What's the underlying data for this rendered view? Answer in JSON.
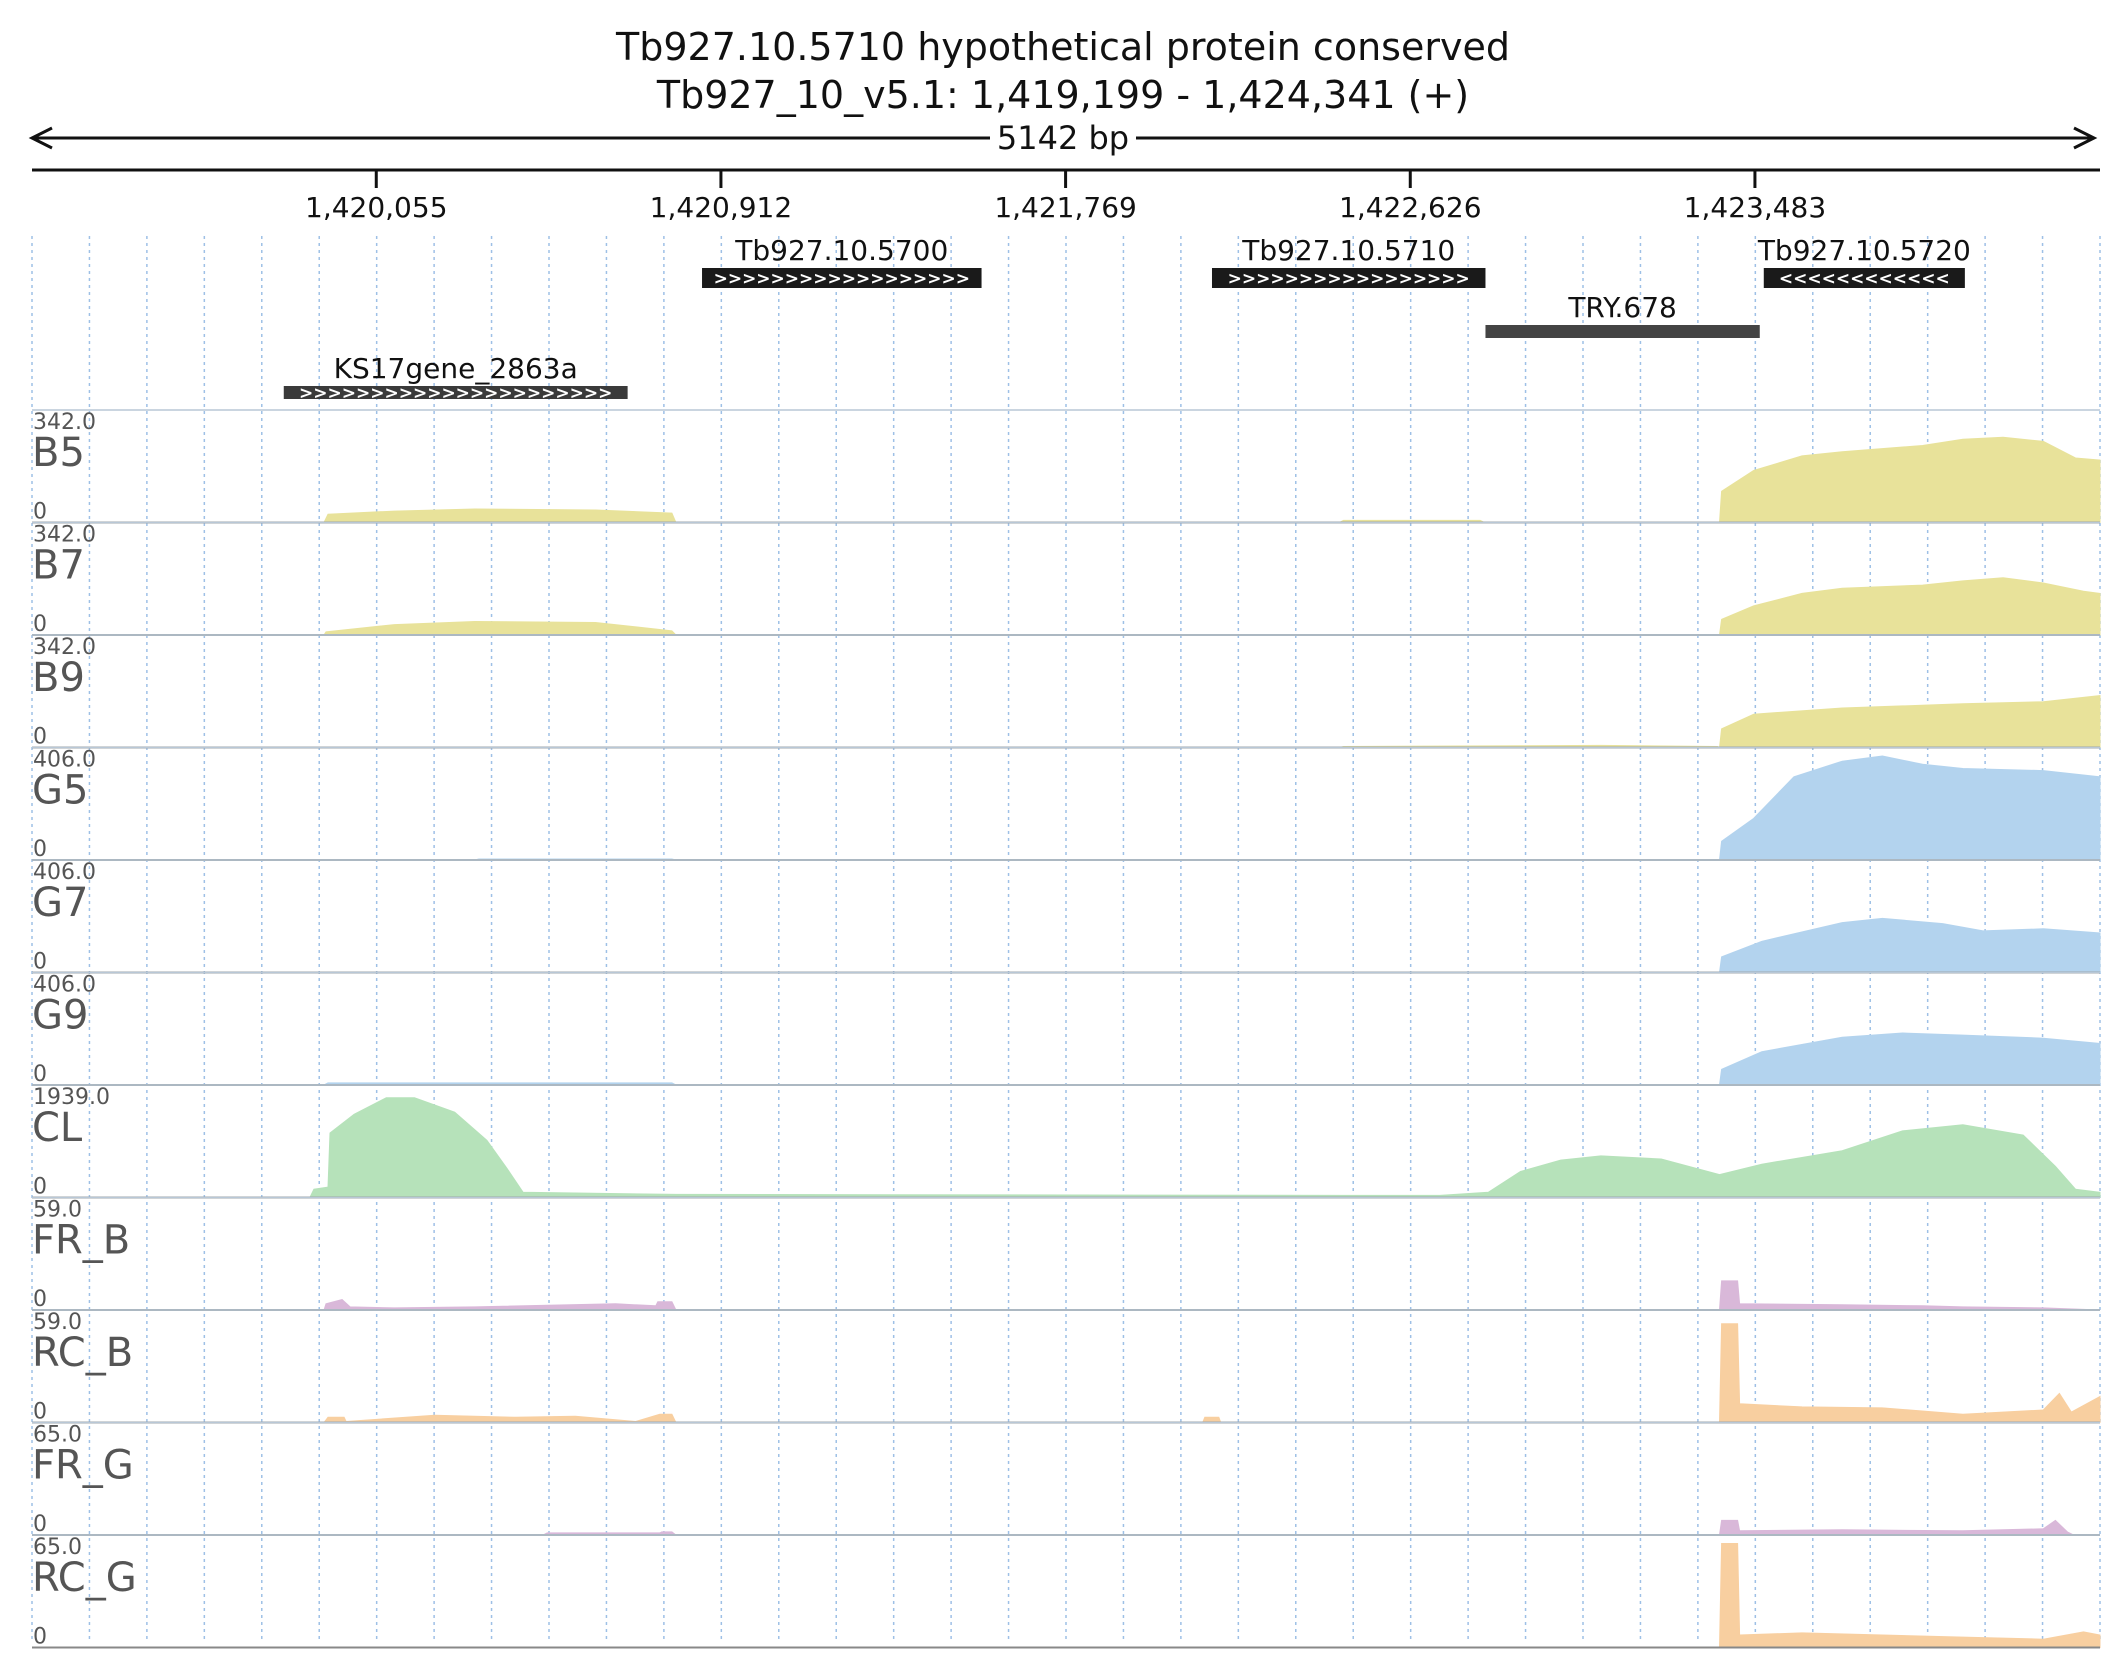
{
  "header": {
    "title": "Tb927.10.5710  hypothetical protein  conserved",
    "locus": "Tb927_10_v5.1: 1,419,199 - 1,424,341 (+)",
    "span": "5142 bp"
  },
  "chart_data": {
    "type": "area",
    "region": {
      "chrom": "Tb927_10_v5.1",
      "start": 1419199,
      "end": 1424341,
      "strand": "+"
    },
    "xticks": [
      {
        "pos": 1420055,
        "label": "1,420,055"
      },
      {
        "pos": 1420912,
        "label": "1,420,912"
      },
      {
        "pos": 1421769,
        "label": "1,421,769"
      },
      {
        "pos": 1422626,
        "label": "1,422,626"
      },
      {
        "pos": 1423483,
        "label": "1,423,483"
      }
    ],
    "features": [
      {
        "name": "Tb927.10.5700",
        "start": 1420865,
        "end": 1421560,
        "strand": "+",
        "row": 0,
        "color": "#1a1a1a"
      },
      {
        "name": "Tb927.10.5710",
        "start": 1422133,
        "end": 1422813,
        "strand": "+",
        "row": 0,
        "color": "#1a1a1a"
      },
      {
        "name": "Tb927.10.5720",
        "start": 1423505,
        "end": 1424005,
        "strand": "-",
        "row": 0,
        "color": "#1a1a1a"
      },
      {
        "name": "TRY.678",
        "start": 1422813,
        "end": 1423495,
        "strand": "",
        "row": 1,
        "color": "#444444"
      },
      {
        "name": "KS17gene_2863a",
        "start": 1419825,
        "end": 1420680,
        "strand": "+",
        "row": 2,
        "color": "#3a3a3a"
      }
    ],
    "tracks": [
      {
        "name": "B5",
        "max": "342.0",
        "min": "0",
        "color": "#e8e29a",
        "profile": [
          [
            1419199,
            0
          ],
          [
            1419925,
            0
          ],
          [
            1419935,
            8
          ],
          [
            1420100,
            11
          ],
          [
            1420300,
            13
          ],
          [
            1420600,
            12
          ],
          [
            1420790,
            9
          ],
          [
            1420800,
            0
          ],
          [
            1422450,
            0
          ],
          [
            1422460,
            2
          ],
          [
            1422800,
            2
          ],
          [
            1422810,
            0
          ],
          [
            1423395,
            0
          ],
          [
            1423400,
            30
          ],
          [
            1423480,
            50
          ],
          [
            1423600,
            64
          ],
          [
            1423700,
            68
          ],
          [
            1423900,
            74
          ],
          [
            1424000,
            80
          ],
          [
            1424100,
            82
          ],
          [
            1424200,
            78
          ],
          [
            1424280,
            62
          ],
          [
            1424341,
            60
          ]
        ]
      },
      {
        "name": "B7",
        "max": "342.0",
        "min": "0",
        "color": "#e8e29a",
        "profile": [
          [
            1419199,
            0
          ],
          [
            1419925,
            0
          ],
          [
            1419930,
            3
          ],
          [
            1420100,
            10
          ],
          [
            1420300,
            13
          ],
          [
            1420600,
            12
          ],
          [
            1420790,
            4
          ],
          [
            1420800,
            0
          ],
          [
            1423395,
            0
          ],
          [
            1423400,
            15
          ],
          [
            1423480,
            28
          ],
          [
            1423600,
            40
          ],
          [
            1423700,
            45
          ],
          [
            1423900,
            48
          ],
          [
            1424000,
            52
          ],
          [
            1424100,
            55
          ],
          [
            1424200,
            50
          ],
          [
            1424300,
            42
          ],
          [
            1424341,
            40
          ]
        ]
      },
      {
        "name": "B9",
        "max": "342.0",
        "min": "0",
        "color": "#e8e29a",
        "profile": [
          [
            1419199,
            0
          ],
          [
            1422450,
            0
          ],
          [
            1422460,
            1
          ],
          [
            1423100,
            2
          ],
          [
            1423390,
            1
          ],
          [
            1423395,
            0
          ],
          [
            1423400,
            18
          ],
          [
            1423480,
            32
          ],
          [
            1423700,
            38
          ],
          [
            1424000,
            42
          ],
          [
            1424200,
            44
          ],
          [
            1424341,
            50
          ]
        ]
      },
      {
        "name": "G5",
        "max": "406.0",
        "min": "0",
        "color": "#b3d3ee",
        "profile": [
          [
            1419199,
            0
          ],
          [
            1420300,
            0
          ],
          [
            1420310,
            1
          ],
          [
            1420790,
            1
          ],
          [
            1420800,
            0
          ],
          [
            1423395,
            0
          ],
          [
            1423400,
            18
          ],
          [
            1423480,
            40
          ],
          [
            1423580,
            80
          ],
          [
            1423700,
            95
          ],
          [
            1423800,
            100
          ],
          [
            1423900,
            92
          ],
          [
            1424000,
            88
          ],
          [
            1424200,
            86
          ],
          [
            1424341,
            80
          ]
        ]
      },
      {
        "name": "G7",
        "max": "406.0",
        "min": "0",
        "color": "#b3d3ee",
        "profile": [
          [
            1419199,
            0
          ],
          [
            1423395,
            0
          ],
          [
            1423400,
            15
          ],
          [
            1423500,
            30
          ],
          [
            1423700,
            48
          ],
          [
            1423800,
            52
          ],
          [
            1423950,
            47
          ],
          [
            1424050,
            40
          ],
          [
            1424200,
            42
          ],
          [
            1424341,
            38
          ]
        ]
      },
      {
        "name": "G9",
        "max": "406.0",
        "min": "0",
        "color": "#b3d3ee",
        "profile": [
          [
            1419199,
            0
          ],
          [
            1419925,
            0
          ],
          [
            1419935,
            2
          ],
          [
            1420790,
            2
          ],
          [
            1420800,
            0
          ],
          [
            1423395,
            0
          ],
          [
            1423400,
            15
          ],
          [
            1423500,
            32
          ],
          [
            1423700,
            46
          ],
          [
            1423850,
            50
          ],
          [
            1424000,
            48
          ],
          [
            1424200,
            45
          ],
          [
            1424341,
            40
          ]
        ]
      },
      {
        "name": "CL",
        "max": "1939.0",
        "min": "0",
        "color": "#b6e2ba",
        "profile": [
          [
            1419199,
            0
          ],
          [
            1419890,
            0
          ],
          [
            1419900,
            8
          ],
          [
            1419935,
            10
          ],
          [
            1419940,
            62
          ],
          [
            1420000,
            80
          ],
          [
            1420080,
            96
          ],
          [
            1420150,
            96
          ],
          [
            1420250,
            82
          ],
          [
            1420330,
            55
          ],
          [
            1420380,
            28
          ],
          [
            1420420,
            5
          ],
          [
            1420800,
            3
          ],
          [
            1422460,
            2
          ],
          [
            1422700,
            2
          ],
          [
            1422820,
            5
          ],
          [
            1422900,
            25
          ],
          [
            1423000,
            36
          ],
          [
            1423100,
            40
          ],
          [
            1423250,
            37
          ],
          [
            1423395,
            22
          ],
          [
            1423500,
            32
          ],
          [
            1423700,
            45
          ],
          [
            1423850,
            64
          ],
          [
            1424000,
            70
          ],
          [
            1424150,
            60
          ],
          [
            1424230,
            30
          ],
          [
            1424280,
            8
          ],
          [
            1424341,
            5
          ]
        ]
      },
      {
        "name": "FR_B",
        "max": "59.0",
        "min": "0",
        "color": "#d9b8d9",
        "profile": [
          [
            1419199,
            0
          ],
          [
            1419925,
            0
          ],
          [
            1419930,
            6
          ],
          [
            1419970,
            10
          ],
          [
            1419990,
            3
          ],
          [
            1420100,
            2
          ],
          [
            1420300,
            3
          ],
          [
            1420650,
            6
          ],
          [
            1420750,
            4
          ],
          [
            1420755,
            8
          ],
          [
            1420790,
            8
          ],
          [
            1420800,
            0
          ],
          [
            1423395,
            0
          ],
          [
            1423400,
            28
          ],
          [
            1423440,
            28
          ],
          [
            1423445,
            6
          ],
          [
            1423700,
            5
          ],
          [
            1423900,
            4
          ],
          [
            1424000,
            3
          ],
          [
            1424200,
            2
          ],
          [
            1424341,
            0
          ]
        ]
      },
      {
        "name": "RC_B",
        "max": "59.0",
        "min": "0",
        "color": "#f8cfa0",
        "profile": [
          [
            1419199,
            0
          ],
          [
            1419925,
            0
          ],
          [
            1419935,
            5
          ],
          [
            1419975,
            5
          ],
          [
            1419980,
            1
          ],
          [
            1420200,
            7
          ],
          [
            1420400,
            5
          ],
          [
            1420550,
            6
          ],
          [
            1420700,
            1
          ],
          [
            1420760,
            8
          ],
          [
            1420790,
            8
          ],
          [
            1420800,
            0
          ],
          [
            1422110,
            0
          ],
          [
            1422115,
            5
          ],
          [
            1422150,
            5
          ],
          [
            1422155,
            0
          ],
          [
            1423395,
            0
          ],
          [
            1423400,
            95
          ],
          [
            1423440,
            95
          ],
          [
            1423445,
            18
          ],
          [
            1423600,
            15
          ],
          [
            1423800,
            14
          ],
          [
            1424000,
            8
          ],
          [
            1424200,
            12
          ],
          [
            1424240,
            28
          ],
          [
            1424270,
            10
          ],
          [
            1424341,
            25
          ]
        ]
      },
      {
        "name": "FR_G",
        "max": "65.0",
        "min": "0",
        "color": "#d9b8d9",
        "profile": [
          [
            1419199,
            0
          ],
          [
            1420470,
            0
          ],
          [
            1420480,
            2
          ],
          [
            1420760,
            2
          ],
          [
            1420765,
            3
          ],
          [
            1420790,
            3
          ],
          [
            1420800,
            0
          ],
          [
            1423395,
            0
          ],
          [
            1423400,
            14
          ],
          [
            1423440,
            14
          ],
          [
            1423445,
            4
          ],
          [
            1423700,
            5
          ],
          [
            1424000,
            4
          ],
          [
            1424200,
            6
          ],
          [
            1424230,
            14
          ],
          [
            1424260,
            3
          ],
          [
            1424275,
            0
          ],
          [
            1424341,
            0
          ]
        ]
      },
      {
        "name": "RC_G",
        "max": "65.0",
        "min": "0",
        "color": "#f8cfa0",
        "profile": [
          [
            1419199,
            0
          ],
          [
            1423395,
            0
          ],
          [
            1423400,
            100
          ],
          [
            1423440,
            100
          ],
          [
            1423445,
            12
          ],
          [
            1423600,
            14
          ],
          [
            1423800,
            12
          ],
          [
            1424000,
            10
          ],
          [
            1424200,
            8
          ],
          [
            1424300,
            15
          ],
          [
            1424341,
            12
          ]
        ]
      }
    ]
  }
}
